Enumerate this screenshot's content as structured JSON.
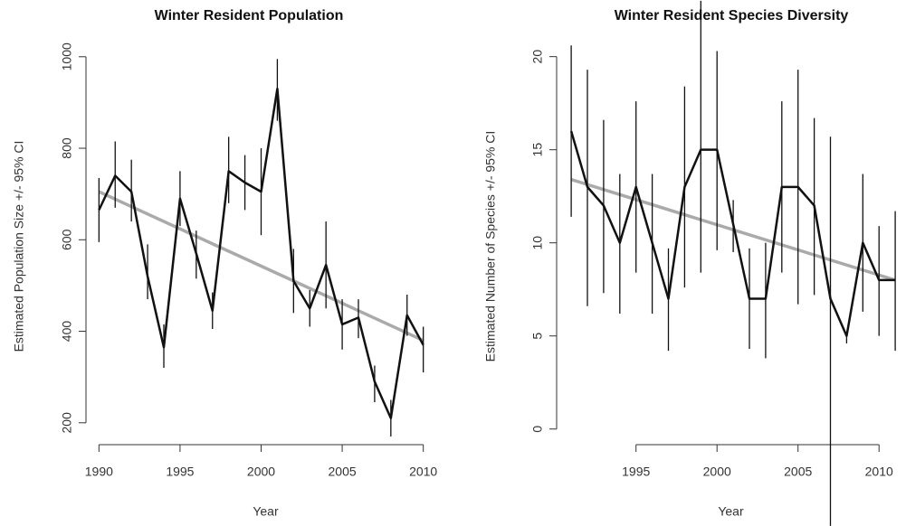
{
  "chart_data": [
    {
      "type": "line",
      "title": "Winter Resident Population",
      "x_label": "Year",
      "y_label": "Estimated Population Size +/- 95% CI",
      "x": [
        1990,
        1991,
        1992,
        1993,
        1994,
        1995,
        1996,
        1997,
        1998,
        1999,
        2000,
        2001,
        2002,
        2003,
        2004,
        2005,
        2006,
        2007,
        2008,
        2009,
        2010
      ],
      "series": [
        {
          "color": "#111111",
          "values": [
            665,
            740,
            705,
            520,
            365,
            690,
            570,
            445,
            750,
            725,
            705,
            930,
            510,
            450,
            545,
            415,
            430,
            290,
            210,
            435,
            370
          ],
          "lower": [
            595,
            670,
            640,
            470,
            320,
            630,
            515,
            405,
            680,
            665,
            610,
            860,
            440,
            410,
            450,
            360,
            385,
            245,
            170,
            390,
            310
          ],
          "upper": [
            735,
            815,
            775,
            590,
            415,
            750,
            620,
            485,
            825,
            785,
            800,
            995,
            580,
            490,
            640,
            470,
            470,
            325,
            250,
            480,
            410
          ]
        }
      ],
      "trend": {
        "x": [
          1990,
          2010
        ],
        "values": [
          705,
          380
        ],
        "color": "#aaaaaa"
      },
      "xlim": [
        1989.2,
        2010.8
      ],
      "ylim": [
        166,
        1045
      ],
      "xticks": [
        1990,
        1995,
        2000,
        2005,
        2010
      ],
      "yticks": [
        200,
        400,
        600,
        800,
        1000
      ]
    },
    {
      "type": "line",
      "title": "Winter Resident Species Diversity",
      "x_label": "Year",
      "y_label": "Estimated Number of Species +/- 95% CI",
      "x": [
        1991,
        1992,
        1993,
        1994,
        1995,
        1996,
        1997,
        1998,
        1999,
        2000,
        2001,
        2002,
        2003,
        2004,
        2005,
        2006,
        2007,
        2008,
        2009,
        2010,
        2011
      ],
      "series": [
        {
          "color": "#111111",
          "values": [
            16,
            13,
            12,
            10,
            13,
            10,
            7,
            13,
            15,
            15,
            11,
            7,
            7,
            13,
            13,
            12,
            7,
            5,
            10,
            8,
            8
          ],
          "lower": [
            11.4,
            6.6,
            7.3,
            6.2,
            8.4,
            6.2,
            4.2,
            7.6,
            8.4,
            9.6,
            9.5,
            4.3,
            3.8,
            8.4,
            6.7,
            7.2,
            -5.2,
            4.6,
            6.3,
            5,
            4.2
          ],
          "upper": [
            20.6,
            19.3,
            16.6,
            13.7,
            17.6,
            13.7,
            9.7,
            18.4,
            23,
            20.3,
            12.3,
            9.7,
            10,
            17.6,
            19.3,
            16.7,
            15.7,
            5.2,
            13.7,
            10.9,
            11.7
          ]
        }
      ],
      "trend": {
        "x": [
          1991,
          2011
        ],
        "values": [
          13.4,
          8.0
        ],
        "color": "#aaaaaa"
      },
      "xlim": [
        1990.1,
        2011.05
      ],
      "ylim": [
        -0.5,
        21.1
      ],
      "xticks": [
        1995,
        2000,
        2005,
        2010
      ],
      "yticks": [
        0,
        5,
        10,
        15,
        20
      ]
    }
  ]
}
